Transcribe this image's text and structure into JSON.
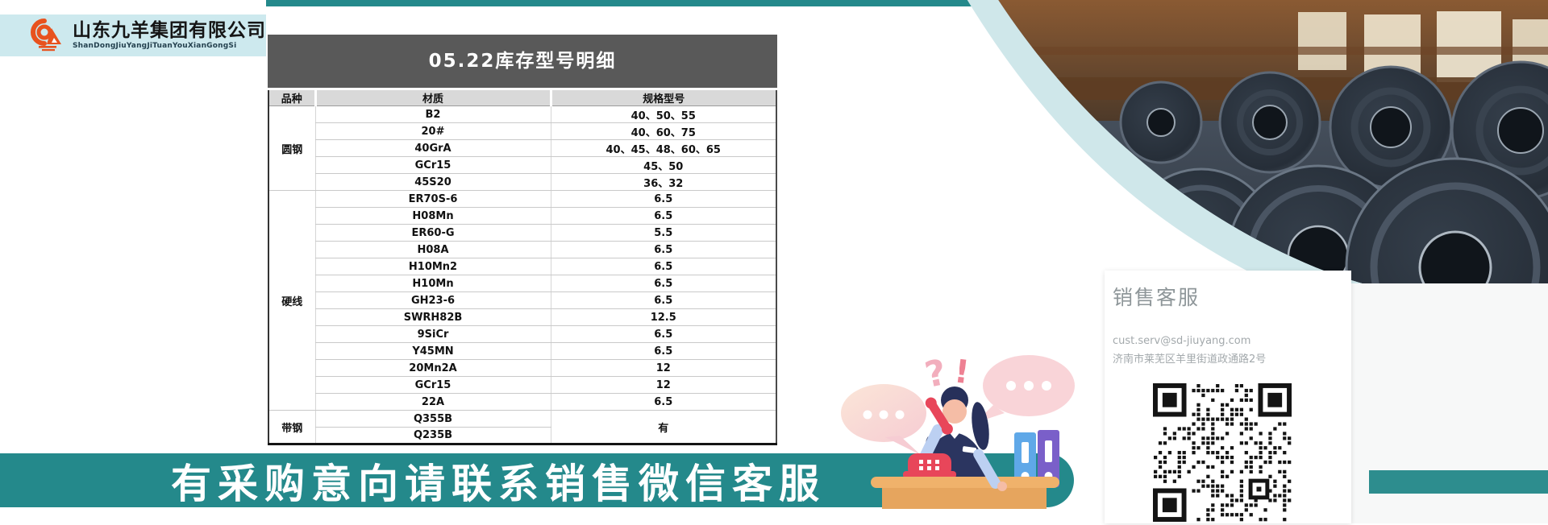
{
  "brand": {
    "name_cn": "山东九羊集团有限公司",
    "name_pinyin": "ShanDongJiuYangJiTuanYouXianGongSi"
  },
  "table": {
    "title": "05.22库存型号明细",
    "columns": [
      "品种",
      "材质",
      "规格型号"
    ],
    "rows": [
      {
        "group": "圆钢",
        "group_span": 5,
        "material": "B2",
        "spec": "40、50、55"
      },
      {
        "material": "20#",
        "spec": "40、60、75"
      },
      {
        "material": "40GrA",
        "spec": "40、45、48、60、65"
      },
      {
        "material": "GCr15",
        "spec": "45、50"
      },
      {
        "material": "45S20",
        "spec": "36、32"
      },
      {
        "group": "硬线",
        "group_span": 13,
        "material": "ER70S-6",
        "spec": "6.5"
      },
      {
        "material": "H08Mn",
        "spec": "6.5"
      },
      {
        "material": "ER60-G",
        "spec": "5.5"
      },
      {
        "material": "H08A",
        "spec": "6.5"
      },
      {
        "material": "H10Mn2",
        "spec": "6.5"
      },
      {
        "material": "H10Mn",
        "spec": "6.5"
      },
      {
        "material": "GH23-6",
        "spec": "6.5"
      },
      {
        "material": "SWRH82B",
        "spec": "12.5"
      },
      {
        "material": "9SiCr",
        "spec": "6.5"
      },
      {
        "material": "Y45MN",
        "spec": "6.5"
      },
      {
        "material": "20Mn2A",
        "spec": "12"
      },
      {
        "material": "GCr15",
        "spec": "12"
      },
      {
        "material": "22A",
        "spec": "6.5"
      },
      {
        "group": "带钢",
        "group_span": 2,
        "material": "Q355B",
        "spec": "有",
        "spec_span": 2
      },
      {
        "material": "Q235B"
      }
    ]
  },
  "contact": {
    "heading": "销售客服",
    "email": "cust.serv@sd-jiuyang.com",
    "address": "济南市莱芜区羊里街道政通路2号"
  },
  "banner": {
    "text": "有采购意向请联系销售微信客服"
  },
  "colors": {
    "teal": "#24898b",
    "teal-light": "#cfe7ea",
    "logo-bg": "#cde9ee",
    "title-bg": "#595959",
    "header-bg": "#d9d9d9",
    "logo-orange": "#e8521e"
  }
}
